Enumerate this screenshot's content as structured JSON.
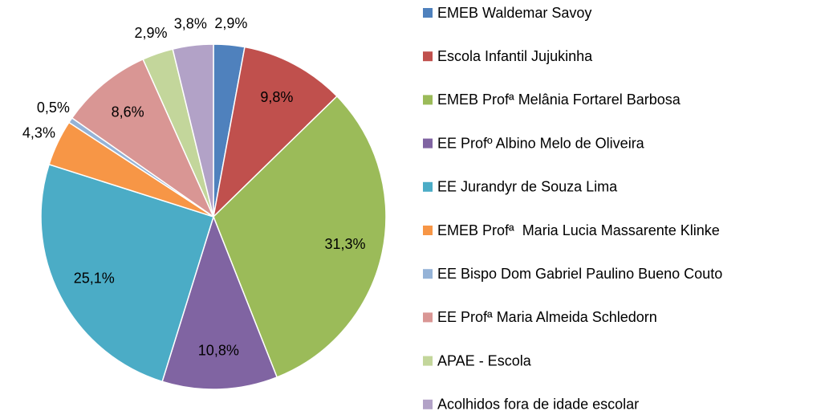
{
  "chart_data": {
    "type": "pie",
    "categories": [
      "EMEB Waldemar Savoy",
      "Escola Infantil Jujukinha",
      "EMEB Profª Melânia Fortarel Barbosa",
      "EE Profº Albino Melo de Oliveira",
      "EE Jurandyr de Souza Lima",
      "EMEB Profª  Maria Lucia Massarente Klinke",
      "EE Bispo Dom Gabriel Paulino Bueno Couto",
      "EE Profª Maria Almeida Schledorn",
      "APAE - Escola",
      "Acolhidos fora de idade escolar"
    ],
    "values": [
      2.9,
      9.8,
      31.3,
      10.8,
      25.1,
      4.3,
      0.5,
      8.6,
      2.9,
      3.8
    ],
    "value_labels": [
      "2,9%",
      "9,8%",
      "31,3%",
      "10,8%",
      "25,1%",
      "4,3%",
      "0,5%",
      "8,6%",
      "2,9%",
      "3,8%"
    ],
    "colors": [
      "#4f81bd",
      "#c0504d",
      "#9bbb59",
      "#8064a2",
      "#4bacc6",
      "#f79646",
      "#95b3d7",
      "#d99694",
      "#c3d69b",
      "#b2a2c7"
    ],
    "legend": "right"
  }
}
